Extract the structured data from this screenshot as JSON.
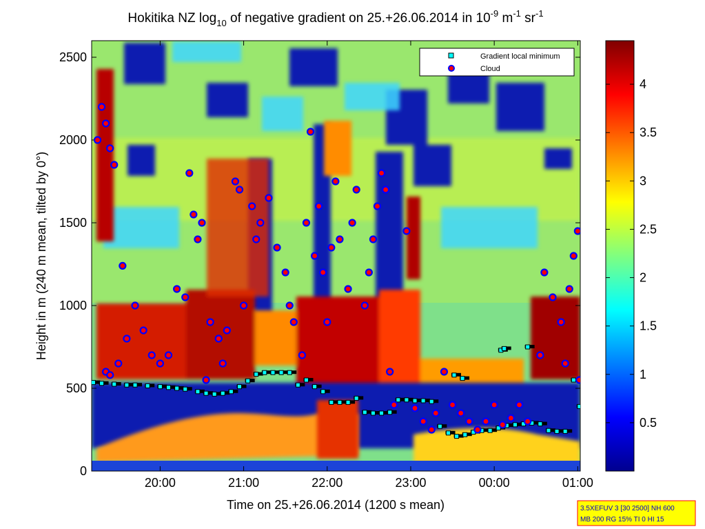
{
  "chart_data": {
    "type": "heatmap",
    "title": {
      "main": "Hokitika NZ log",
      "sub10": "10",
      "mid": " of negative gradient on 25.+26.06.2014 in 10",
      "exp1": "-9",
      "m": " m",
      "exp2": "-1",
      "sr": " sr",
      "exp3": "-1"
    },
    "xlabel": "Time on 25.+26.06.2014 (1200 s mean)",
    "ylabel": "Height in m (240 m mean, tilted by 0°)",
    "x_ticks": [
      "20:00",
      "21:00",
      "22:00",
      "23:00",
      "00:00",
      "01:00"
    ],
    "x_tick_hours": [
      20,
      21,
      22,
      23,
      24,
      25
    ],
    "xlim_hours": [
      19.18,
      25.03
    ],
    "y_ticks": [
      "0",
      "500",
      "1000",
      "1500",
      "2000",
      "2500"
    ],
    "y_tick_values": [
      0,
      500,
      1000,
      1500,
      2000,
      2500
    ],
    "ylim": [
      0,
      2600
    ],
    "colorbar": {
      "ticks": [
        "0.5",
        "1",
        "1.5",
        "2",
        "2.5",
        "3",
        "3.5",
        "4"
      ],
      "tick_values": [
        0.5,
        1,
        1.5,
        2,
        2.5,
        3,
        3.5,
        4
      ],
      "range": [
        0,
        4.45
      ],
      "colormap": "jet"
    },
    "legend": {
      "position": "top-right",
      "entries": [
        {
          "label": "Gradient local minimum",
          "marker": "square",
          "face": "#00ffff",
          "edge": "#000000"
        },
        {
          "label": "Cloud",
          "marker": "circle",
          "face": "#ff0000",
          "edge": "#0000ff"
        }
      ]
    },
    "series": [
      {
        "name": "Gradient local minimum",
        "x": [
          19.2,
          19.3,
          19.45,
          19.6,
          19.7,
          19.85,
          20.0,
          20.1,
          20.2,
          20.3,
          20.45,
          20.55,
          20.65,
          20.75,
          20.85,
          20.95,
          21.05,
          21.15,
          21.25,
          21.35,
          21.45,
          21.55,
          21.65,
          21.75,
          21.85,
          21.95,
          22.05,
          22.15,
          22.25,
          22.35,
          22.45,
          22.55,
          22.65,
          22.75,
          22.85,
          22.95,
          23.05,
          23.15,
          23.25,
          23.35,
          23.45,
          23.55,
          23.65,
          23.75,
          23.85,
          23.95,
          24.05,
          24.15,
          24.25,
          24.35,
          24.45,
          24.55,
          24.65,
          24.75,
          24.85,
          24.95,
          25.02,
          23.52,
          23.62,
          24.08,
          24.12,
          24.4
        ],
        "y": [
          535,
          530,
          525,
          520,
          520,
          515,
          510,
          505,
          500,
          495,
          480,
          470,
          465,
          470,
          480,
          510,
          545,
          585,
          595,
          595,
          595,
          595,
          520,
          550,
          510,
          480,
          415,
          415,
          415,
          440,
          355,
          350,
          350,
          355,
          430,
          430,
          425,
          425,
          420,
          270,
          230,
          210,
          220,
          235,
          245,
          245,
          260,
          275,
          280,
          285,
          290,
          285,
          245,
          240,
          240,
          550,
          390,
          580,
          560,
          730,
          740,
          750
        ]
      },
      {
        "name": "Cloud",
        "x": [
          19.25,
          19.3,
          19.35,
          19.4,
          19.45,
          19.35,
          19.4,
          19.5,
          19.55,
          19.6,
          19.7,
          19.8,
          19.9,
          20.0,
          20.1,
          20.2,
          20.3,
          20.35,
          20.4,
          20.45,
          20.5,
          20.55,
          20.6,
          20.7,
          20.75,
          20.8,
          20.9,
          20.95,
          21.0,
          21.1,
          21.15,
          21.2,
          21.3,
          21.4,
          21.5,
          21.55,
          21.6,
          21.7,
          21.75,
          21.8,
          21.85,
          21.9,
          21.95,
          22.0,
          22.05,
          22.1,
          22.15,
          22.25,
          22.3,
          22.35,
          22.45,
          22.5,
          22.55,
          22.6,
          22.65,
          22.7,
          22.75,
          22.8,
          22.95,
          23.05,
          23.15,
          23.25,
          23.3,
          23.4,
          23.5,
          23.6,
          23.7,
          23.8,
          23.9,
          24.0,
          24.1,
          24.2,
          24.3,
          24.4,
          24.55,
          24.6,
          24.7,
          24.8,
          24.85,
          24.9,
          24.95,
          25.0,
          25.02
        ],
        "y": [
          2000,
          2200,
          2100,
          1950,
          1850,
          600,
          580,
          650,
          1240,
          800,
          1000,
          850,
          700,
          650,
          700,
          1100,
          1050,
          1800,
          1550,
          1400,
          1500,
          550,
          900,
          800,
          650,
          850,
          1750,
          1700,
          1000,
          1600,
          1400,
          1500,
          1650,
          1350,
          1200,
          1000,
          900,
          700,
          1500,
          2050,
          1300,
          1600,
          1200,
          900,
          1350,
          1750,
          1400,
          1100,
          1500,
          1700,
          1000,
          1200,
          1400,
          1600,
          1800,
          1700,
          600,
          400,
          1450,
          380,
          300,
          250,
          350,
          600,
          400,
          350,
          300,
          250,
          300,
          400,
          280,
          320,
          400,
          300,
          700,
          1200,
          1050,
          900,
          650,
          1100,
          1300,
          1450,
          550
        ]
      }
    ],
    "info_box": [
      "3.5XEFUV 3 [30 2500] NH 600",
      "MB 200 RG 15% TI 0 HI 15"
    ],
    "colors": {
      "legend_square": "#00ffff",
      "cloud_face": "#ff0000",
      "cloud_edge": "#0000ff",
      "minimum_line": "#000000",
      "info_box_bg": "#ffff00",
      "info_box_border": "#ff0000"
    }
  }
}
